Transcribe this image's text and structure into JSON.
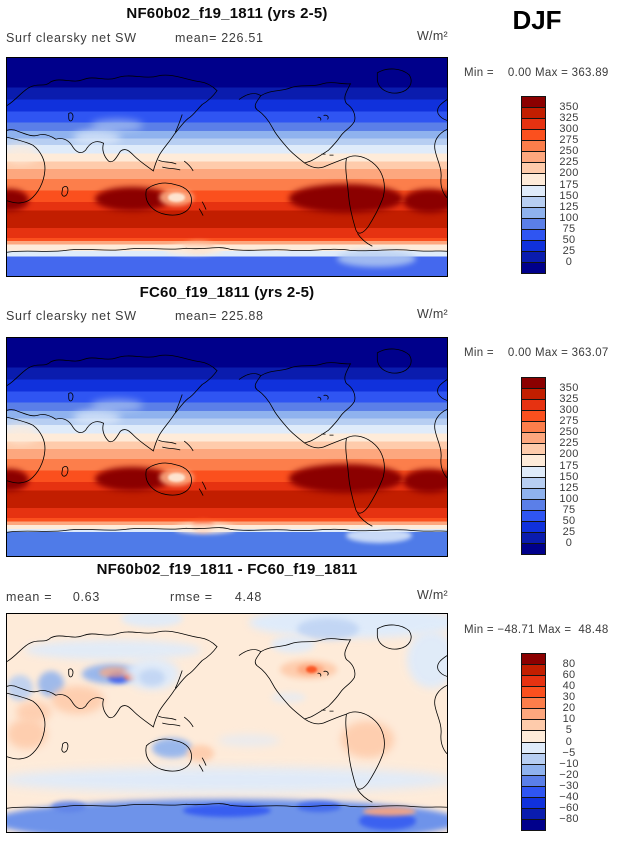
{
  "season_label": "DJF",
  "palette": [
    "#8B0000",
    "#C21E00",
    "#E63211",
    "#FB501E",
    "#FC7E4B",
    "#FDA77E",
    "#FECBAB",
    "#FEEBD9",
    "#DFEBFA",
    "#B7CEF2",
    "#8FB2EE",
    "#5B7FE8",
    "#2F55F2",
    "#1031DC",
    "#0A1CAE",
    "#00008B"
  ],
  "panels": [
    {
      "title": "NF60b02_f19_1811 (yrs 2-5)",
      "field_label": "Surf clearsky net SW",
      "mean_text": "mean= 226.51",
      "unit": "W/m²",
      "minmax_text": "Min =    0.00 Max = 363.89",
      "colorbar_ticks": [
        "350",
        "325",
        "300",
        "275",
        "250",
        "225",
        "200",
        "175",
        "150",
        "125",
        "100",
        "75",
        "50",
        "25",
        "0"
      ]
    },
    {
      "title": "FC60_f19_1811 (yrs 2-5)",
      "field_label": "Surf clearsky net SW",
      "mean_text": "mean= 225.88",
      "unit": "W/m²",
      "minmax_text": "Min =    0.00 Max = 363.07",
      "colorbar_ticks": [
        "350",
        "325",
        "300",
        "275",
        "250",
        "225",
        "200",
        "175",
        "150",
        "125",
        "100",
        "75",
        "50",
        "25",
        "0"
      ]
    },
    {
      "title": "NF60b02_f19_1811 - FC60_f19_1811",
      "mean_label": "mean =",
      "mean_value": "0.63",
      "rmse_label": "rmse =",
      "rmse_value": "4.48",
      "unit": "W/m²",
      "minmax_text": "Min = −48.71 Max =  48.48",
      "colorbar_ticks": [
        "80",
        "60",
        "40",
        "30",
        "20",
        "10",
        "5",
        "0",
        "−5",
        "−10",
        "−20",
        "−30",
        "−40",
        "−60",
        "−80"
      ]
    }
  ],
  "chart_data": [
    {
      "type": "heatmap",
      "subtype": "filled-contour global map, equirectangular, Pacific-centered",
      "title": "NF60b02_f19_1811 (yrs 2-5)",
      "variable": "Surf clearsky net SW",
      "season": "DJF",
      "units": "W/m²",
      "mean": 226.51,
      "min": 0.0,
      "max": 363.89,
      "levels": [
        0,
        25,
        50,
        75,
        100,
        125,
        150,
        175,
        200,
        225,
        250,
        275,
        300,
        325,
        350
      ],
      "legend_position": "right",
      "render": {
        "bands": [
          [
            "#00008B",
            0,
            13.5
          ],
          [
            "#0A1CAE",
            13.5,
            19
          ],
          [
            "#1031DC",
            19,
            24.5
          ],
          [
            "#2F55F2",
            24.5,
            29.5
          ],
          [
            "#5B7FE8",
            29.5,
            33.5
          ],
          [
            "#8FB2EE",
            33.5,
            37
          ],
          [
            "#B7CEF2",
            37,
            40
          ],
          [
            "#DFEBFA",
            40,
            43.7
          ],
          [
            "#FEEBD9",
            43.7,
            47.4
          ],
          [
            "#FECBAB",
            47.4,
            51
          ],
          [
            "#FDA77E",
            51,
            55.6
          ],
          [
            "#FC7E4B",
            55.6,
            60.7
          ],
          [
            "#FB501E",
            60.7,
            66
          ],
          [
            "#E63211",
            66,
            70
          ],
          [
            "#C21E00",
            70,
            78
          ],
          [
            "#E63211",
            78,
            82.5
          ],
          [
            "#FB501E",
            82.5,
            84
          ],
          [
            "#FDA77E",
            84,
            85.5
          ],
          [
            "#FEEBD9",
            85.5,
            88.5
          ],
          [
            "#DFEBFA",
            88.5,
            91
          ],
          [
            "#4468EE",
            91,
            100
          ]
        ],
        "features": [
          [
            20,
            59,
            17,
            11,
            "#8B0000",
            3,
            1
          ],
          [
            64,
            58,
            26,
            13,
            "#8B0000",
            3,
            1
          ],
          [
            90,
            60,
            12,
            11,
            "#8B0000",
            3,
            1
          ],
          [
            -4,
            60,
            9,
            10,
            "#8B0000",
            3,
            1
          ],
          [
            34.5,
            60,
            8,
            8,
            "#FDA77E",
            2,
            0.9
          ],
          [
            36.5,
            62,
            4,
            4,
            "#FEEBD9",
            1,
            0.9
          ],
          [
            15,
            33,
            11,
            7,
            "#DFEBFA",
            4,
            0.75
          ],
          [
            19,
            28,
            12,
            6,
            "#B7CEF2",
            4,
            0.6
          ],
          [
            -1,
            40,
            8,
            8,
            "#FEEBD9",
            4,
            0.8
          ],
          [
            40,
            84,
            7,
            5,
            "#FDA77E",
            2,
            0.9
          ],
          [
            36,
            85.5,
            13,
            5,
            "#FEEBD9",
            2,
            0.9
          ],
          [
            75,
            88,
            18,
            8,
            "#B7CEF2",
            3,
            0.8
          ]
        ]
      }
    },
    {
      "type": "heatmap",
      "subtype": "filled-contour global map, equirectangular, Pacific-centered",
      "title": "FC60_f19_1811 (yrs 2-5)",
      "variable": "Surf clearsky net SW",
      "season": "DJF",
      "units": "W/m²",
      "mean": 225.88,
      "min": 0.0,
      "max": 363.07,
      "levels": [
        0,
        25,
        50,
        75,
        100,
        125,
        150,
        175,
        200,
        225,
        250,
        275,
        300,
        325,
        350
      ],
      "legend_position": "right",
      "render": {
        "bands": [
          [
            "#00008B",
            0,
            13.5
          ],
          [
            "#0A1CAE",
            13.5,
            19
          ],
          [
            "#1031DC",
            19,
            24.5
          ],
          [
            "#2F55F2",
            24.5,
            29.5
          ],
          [
            "#5B7FE8",
            29.5,
            33.5
          ],
          [
            "#8FB2EE",
            33.5,
            37
          ],
          [
            "#B7CEF2",
            37,
            40
          ],
          [
            "#DFEBFA",
            40,
            43.7
          ],
          [
            "#FEEBD9",
            43.7,
            47.4
          ],
          [
            "#FECBAB",
            47.4,
            51
          ],
          [
            "#FDA77E",
            51,
            55.6
          ],
          [
            "#FC7E4B",
            55.6,
            60.7
          ],
          [
            "#FB501E",
            60.7,
            66
          ],
          [
            "#E63211",
            66,
            70
          ],
          [
            "#C21E00",
            70,
            78
          ],
          [
            "#E63211",
            78,
            82.5
          ],
          [
            "#FB501E",
            82.5,
            84.2
          ],
          [
            "#FDA77E",
            84.2,
            85.8
          ],
          [
            "#FEEBD9",
            85.8,
            87.5
          ],
          [
            "#DFEBFA",
            87.5,
            89
          ],
          [
            "#4F7BE8",
            89,
            100
          ]
        ],
        "features": [
          [
            20,
            59,
            17,
            11,
            "#8B0000",
            3,
            1
          ],
          [
            64,
            58,
            26,
            13,
            "#8B0000",
            3,
            1
          ],
          [
            90,
            60,
            12,
            11,
            "#8B0000",
            3,
            1
          ],
          [
            -4,
            60,
            9,
            10,
            "#8B0000",
            3,
            1
          ],
          [
            34.5,
            60,
            8,
            8,
            "#FDA77E",
            2,
            0.9
          ],
          [
            36.5,
            62,
            4,
            4,
            "#FEEBD9",
            1,
            0.9
          ],
          [
            15,
            33,
            11,
            7,
            "#DFEBFA",
            4,
            0.75
          ],
          [
            19,
            28,
            12,
            6,
            "#B7CEF2",
            4,
            0.6
          ],
          [
            -1,
            40,
            8,
            8,
            "#FEEBD9",
            4,
            0.8
          ],
          [
            42,
            83,
            5,
            6,
            "#FB501E",
            2,
            0.9
          ],
          [
            38,
            85,
            14,
            5,
            "#FEEBD9",
            2,
            0.9
          ],
          [
            77,
            87,
            15,
            7,
            "#DFEBFA",
            2,
            0.85
          ]
        ]
      }
    },
    {
      "type": "heatmap",
      "subtype": "filled-contour global difference map, equirectangular, Pacific-centered",
      "title": "NF60b02_f19_1811 - FC60_f19_1811",
      "variable": "Surf clearsky net SW difference",
      "season": "DJF",
      "units": "W/m²",
      "mean": 0.63,
      "rmse": 4.48,
      "min": -48.71,
      "max": 48.48,
      "levels": [
        -80,
        -60,
        -40,
        -30,
        -20,
        -10,
        -5,
        0,
        5,
        10,
        20,
        30,
        40,
        60,
        80
      ],
      "legend_position": "right",
      "render": {
        "bands": [
          [
            "#FEEBD9",
            0,
            100
          ]
        ],
        "features": [
          [
            55,
            -3,
            48,
            14,
            "#DFEBFA",
            4,
            1
          ],
          [
            26,
            -2,
            14,
            8,
            "#DFEBFA",
            3,
            0.9
          ],
          [
            66,
            2,
            14,
            10,
            "#B7CEF2",
            3,
            0.7
          ],
          [
            91,
            8,
            11,
            26,
            "#DFEBFA",
            4,
            0.95
          ],
          [
            4,
            12,
            40,
            9,
            "#DFEBFA",
            4,
            0.9
          ],
          [
            17,
            23,
            14,
            9,
            "#8FB2EE",
            3,
            0.9
          ],
          [
            23,
            26.5,
            5,
            5,
            "#2F55F2",
            2,
            0.9
          ],
          [
            26.5,
            27,
            3,
            3.5,
            "#E63211",
            1.5,
            0.95
          ],
          [
            21,
            24.5,
            7,
            5,
            "#FDA77E",
            2,
            0.7
          ],
          [
            7,
            26,
            6,
            12,
            "#8FB2EE",
            3,
            0.85
          ],
          [
            0,
            28,
            6,
            12,
            "#B7CEF2",
            3,
            0.85
          ],
          [
            27,
            20,
            12,
            15,
            "#DFEBFA",
            4,
            0.95
          ],
          [
            30,
            25,
            6,
            8,
            "#B7CEF2",
            3,
            0.7
          ],
          [
            10,
            33,
            12,
            13,
            "#FECBAB",
            4,
            0.9
          ],
          [
            2,
            40,
            8,
            10,
            "#FECBAB",
            4,
            0.85
          ],
          [
            0,
            48,
            9,
            14,
            "#FECBAB",
            4,
            0.9
          ],
          [
            60,
            10,
            10,
            8,
            "#DFEBFA",
            3,
            0.85
          ],
          [
            62,
            21,
            13,
            9,
            "#FECBAB",
            3,
            0.95
          ],
          [
            66,
            23,
            6,
            5,
            "#FDA77E",
            2,
            0.9
          ],
          [
            68,
            24,
            2.5,
            3,
            "#FB501E",
            1,
            0.9
          ],
          [
            76,
            49,
            12,
            17,
            "#FECBAB",
            4,
            0.9
          ],
          [
            33,
            57,
            9,
            9,
            "#8FB2EE",
            3,
            0.9
          ],
          [
            41,
            60,
            6,
            8,
            "#FECBAB",
            3,
            0.9
          ],
          [
            48,
            55,
            14,
            6,
            "#DFEBFA",
            4,
            0.6
          ],
          [
            60,
            36,
            8,
            5,
            "#DFEBFA",
            3,
            0.6
          ],
          [
            -2,
            70,
            104,
            12,
            "#DFEBFA",
            5,
            0.95
          ],
          [
            -3,
            85,
            106,
            20,
            "#6E93EA",
            3,
            1
          ],
          [
            40,
            87,
            20,
            6,
            "#2F55F2",
            2,
            0.85
          ],
          [
            66,
            86,
            10,
            5,
            "#3A62EE",
            2,
            0.8
          ],
          [
            10,
            86,
            8,
            5,
            "#5B7FE8",
            2,
            0.8
          ],
          [
            80,
            91,
            13,
            8,
            "#2F55F2",
            2,
            0.8
          ],
          [
            81,
            88.5,
            12,
            4,
            "#FDA77E",
            2,
            0.9
          ]
        ]
      }
    }
  ]
}
